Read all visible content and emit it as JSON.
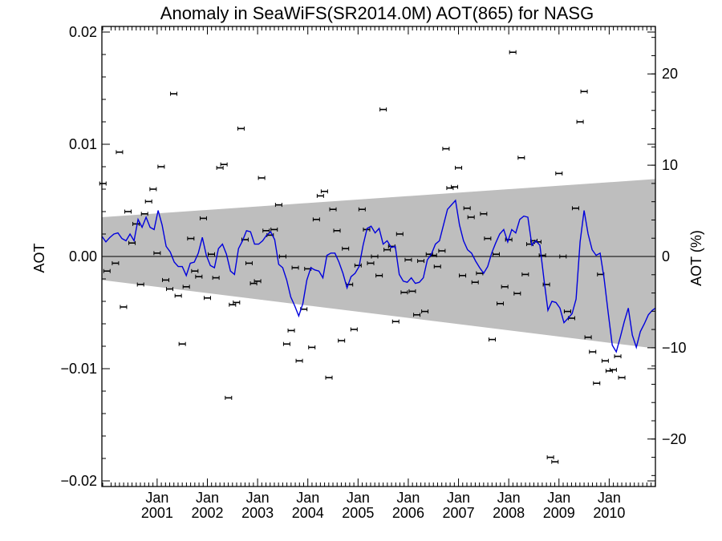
{
  "chart_data": {
    "type": "line",
    "title": "Anomaly in SeaWiFS(SR2014.0M) AOT(865) for NASG",
    "ylabel_left": "AOT",
    "ylabel_right": "AOT (%)",
    "xlabel": "",
    "ylim_left": [
      -0.0205,
      0.0205
    ],
    "ylim_right": [
      -25.2,
      25.2
    ],
    "x_range_years": [
      1999.9,
      2010.92
    ],
    "grid": false,
    "legend": "none",
    "left_ticks": [
      {
        "value": 0.02,
        "label": "0.02"
      },
      {
        "value": 0.01,
        "label": "0.01"
      },
      {
        "value": 0.0,
        "label": "0.00"
      },
      {
        "value": -0.01,
        "label": "−0.01"
      },
      {
        "value": -0.02,
        "label": "−0.02"
      }
    ],
    "right_ticks": [
      {
        "value": 20,
        "label": "20"
      },
      {
        "value": 10,
        "label": "10"
      },
      {
        "value": 0,
        "label": "0"
      },
      {
        "value": -10,
        "label": "−10"
      },
      {
        "value": -20,
        "label": "−20"
      }
    ],
    "x_ticks": [
      {
        "year": 2001.0,
        "month": "Jan",
        "yr": "2001"
      },
      {
        "year": 2002.0,
        "month": "Jan",
        "yr": "2002"
      },
      {
        "year": 2003.0,
        "month": "Jan",
        "yr": "2003"
      },
      {
        "year": 2004.0,
        "month": "Jan",
        "yr": "2004"
      },
      {
        "year": 2005.0,
        "month": "Jan",
        "yr": "2005"
      },
      {
        "year": 2006.0,
        "month": "Jan",
        "yr": "2006"
      },
      {
        "year": 2007.0,
        "month": "Jan",
        "yr": "2007"
      },
      {
        "year": 2008.0,
        "month": "Jan",
        "yr": "2008"
      },
      {
        "year": 2009.0,
        "month": "Jan",
        "yr": "2009"
      },
      {
        "year": 2010.0,
        "month": "Jan",
        "yr": "2010"
      }
    ],
    "band": {
      "upper": [
        [
          1999.9,
          0.0035
        ],
        [
          2010.92,
          0.0069
        ]
      ],
      "lower": [
        [
          1999.9,
          -0.0021
        ],
        [
          2010.92,
          -0.0082
        ]
      ],
      "color": "#bebebe"
    },
    "series": [
      {
        "kind": "monthly_points",
        "color": "#000000",
        "points": [
          [
            1999.92,
            0.0065
          ],
          [
            2000.0,
            -0.0013
          ],
          [
            2000.17,
            -0.0006
          ],
          [
            2000.25,
            0.0093
          ],
          [
            2000.33,
            -0.0045
          ],
          [
            2000.42,
            0.004
          ],
          [
            2000.5,
            0.0012
          ],
          [
            2000.58,
            0.0029
          ],
          [
            2000.67,
            -0.0025
          ],
          [
            2000.75,
            0.0038
          ],
          [
            2000.83,
            0.0049
          ],
          [
            2000.92,
            0.006
          ],
          [
            2001.0,
            0.0003
          ],
          [
            2001.08,
            0.008
          ],
          [
            2001.17,
            -0.0021
          ],
          [
            2001.25,
            -0.0029
          ],
          [
            2001.33,
            0.0145
          ],
          [
            2001.42,
            -0.0035
          ],
          [
            2001.5,
            -0.0078
          ],
          [
            2001.58,
            -0.0027
          ],
          [
            2001.67,
            0.0016
          ],
          [
            2001.75,
            -0.0013
          ],
          [
            2001.83,
            -0.0018
          ],
          [
            2001.92,
            0.0034
          ],
          [
            2002.0,
            -0.0037
          ],
          [
            2002.08,
            0.0002
          ],
          [
            2002.17,
            -0.0019
          ],
          [
            2002.25,
            0.0079
          ],
          [
            2002.33,
            0.0082
          ],
          [
            2002.42,
            -0.0126
          ],
          [
            2002.5,
            -0.0043
          ],
          [
            2002.58,
            -0.0041
          ],
          [
            2002.67,
            0.0114
          ],
          [
            2002.75,
            0.0015
          ],
          [
            2002.83,
            -0.0006
          ],
          [
            2002.92,
            -0.0024
          ],
          [
            2003.0,
            -0.0022
          ],
          [
            2003.08,
            0.007
          ],
          [
            2003.17,
            0.0023
          ],
          [
            2003.25,
            0.0019
          ],
          [
            2003.33,
            0.0024
          ],
          [
            2003.42,
            0.0046
          ],
          [
            2003.5,
            0.0
          ],
          [
            2003.58,
            -0.0078
          ],
          [
            2003.67,
            -0.0066
          ],
          [
            2003.75,
            -0.001
          ],
          [
            2003.83,
            -0.0093
          ],
          [
            2003.92,
            -0.0047
          ],
          [
            2004.0,
            -0.0011
          ],
          [
            2004.08,
            -0.0081
          ],
          [
            2004.17,
            0.0033
          ],
          [
            2004.25,
            0.0054
          ],
          [
            2004.33,
            0.0058
          ],
          [
            2004.42,
            -0.0108
          ],
          [
            2004.5,
            0.0042
          ],
          [
            2004.58,
            0.0023
          ],
          [
            2004.67,
            -0.0075
          ],
          [
            2004.75,
            0.0007
          ],
          [
            2004.83,
            -0.0025
          ],
          [
            2004.92,
            -0.0065
          ],
          [
            2005.0,
            -0.0008
          ],
          [
            2005.08,
            0.0042
          ],
          [
            2005.17,
            0.0024
          ],
          [
            2005.25,
            -0.0006
          ],
          [
            2005.33,
            0.0
          ],
          [
            2005.42,
            -0.0017
          ],
          [
            2005.5,
            0.0131
          ],
          [
            2005.58,
            0.0006
          ],
          [
            2005.67,
            0.0009
          ],
          [
            2005.75,
            -0.0058
          ],
          [
            2005.83,
            0.002
          ],
          [
            2005.92,
            -0.0032
          ],
          [
            2006.0,
            -0.0003
          ],
          [
            2006.08,
            -0.0031
          ],
          [
            2006.17,
            -0.0052
          ],
          [
            2006.25,
            -0.0004
          ],
          [
            2006.33,
            -0.0049
          ],
          [
            2006.42,
            0.0002
          ],
          [
            2006.5,
            0.0001
          ],
          [
            2006.58,
            -0.0009
          ],
          [
            2006.67,
            0.0005
          ],
          [
            2006.75,
            0.0096
          ],
          [
            2006.83,
            0.0061
          ],
          [
            2006.92,
            0.0062
          ],
          [
            2007.0,
            0.0079
          ],
          [
            2007.08,
            -0.0017
          ],
          [
            2007.17,
            0.0043
          ],
          [
            2007.25,
            0.0035
          ],
          [
            2007.33,
            -0.0023
          ],
          [
            2007.42,
            -0.0015
          ],
          [
            2007.5,
            0.0038
          ],
          [
            2007.58,
            0.0016
          ],
          [
            2007.67,
            -0.0074
          ],
          [
            2007.75,
            0.0002
          ],
          [
            2007.83,
            -0.0042
          ],
          [
            2007.92,
            -0.0027
          ],
          [
            2008.0,
            0.0015
          ],
          [
            2008.08,
            0.0182
          ],
          [
            2008.17,
            -0.0033
          ],
          [
            2008.25,
            0.0088
          ],
          [
            2008.33,
            -0.0016
          ],
          [
            2008.42,
            0.0011
          ],
          [
            2008.5,
            0.0014
          ],
          [
            2008.58,
            0.0013
          ],
          [
            2008.67,
            0.0001
          ],
          [
            2008.75,
            -0.0025
          ],
          [
            2008.83,
            -0.0179
          ],
          [
            2008.92,
            -0.0183
          ],
          [
            2009.0,
            0.0074
          ],
          [
            2009.08,
            0.0
          ],
          [
            2009.17,
            -0.0049
          ],
          [
            2009.25,
            -0.0055
          ],
          [
            2009.33,
            0.0043
          ],
          [
            2009.42,
            0.012
          ],
          [
            2009.5,
            0.0147
          ],
          [
            2009.58,
            -0.0072
          ],
          [
            2009.67,
            -0.0085
          ],
          [
            2009.75,
            -0.0113
          ],
          [
            2009.83,
            -0.0016
          ],
          [
            2009.92,
            -0.0093
          ],
          [
            2010.0,
            -0.0102
          ],
          [
            2010.08,
            -0.0101
          ],
          [
            2010.17,
            -0.0089
          ],
          [
            2010.25,
            -0.0108
          ]
        ]
      },
      {
        "kind": "smoothed_line",
        "color": "#0000dd",
        "points": [
          [
            1999.9,
            0.0018
          ],
          [
            1999.98,
            0.0013
          ],
          [
            2000.06,
            0.0017
          ],
          [
            2000.14,
            0.002
          ],
          [
            2000.22,
            0.0021
          ],
          [
            2000.3,
            0.0016
          ],
          [
            2000.38,
            0.0014
          ],
          [
            2000.46,
            0.002
          ],
          [
            2000.54,
            0.0014
          ],
          [
            2000.62,
            0.0033
          ],
          [
            2000.7,
            0.0026
          ],
          [
            2000.78,
            0.0035
          ],
          [
            2000.86,
            0.0026
          ],
          [
            2000.94,
            0.0024
          ],
          [
            2001.02,
            0.0041
          ],
          [
            2001.1,
            0.0028
          ],
          [
            2001.18,
            0.0009
          ],
          [
            2001.26,
            0.0004
          ],
          [
            2001.34,
            -0.0005
          ],
          [
            2001.42,
            -0.0009
          ],
          [
            2001.5,
            -0.0009
          ],
          [
            2001.58,
            -0.0017
          ],
          [
            2001.66,
            -0.0006
          ],
          [
            2001.74,
            -0.0005
          ],
          [
            2001.82,
            0.0003
          ],
          [
            2001.9,
            0.0017
          ],
          [
            2001.98,
            0.0001
          ],
          [
            2002.06,
            -0.0008
          ],
          [
            2002.14,
            -0.001
          ],
          [
            2002.22,
            0.0007
          ],
          [
            2002.3,
            0.0011
          ],
          [
            2002.38,
            0.0002
          ],
          [
            2002.46,
            -0.0013
          ],
          [
            2002.54,
            -0.0016
          ],
          [
            2002.62,
            0.0007
          ],
          [
            2002.7,
            0.0014
          ],
          [
            2002.78,
            0.0023
          ],
          [
            2002.86,
            0.0022
          ],
          [
            2002.94,
            0.0011
          ],
          [
            2003.02,
            0.0011
          ],
          [
            2003.1,
            0.0014
          ],
          [
            2003.18,
            0.0019
          ],
          [
            2003.26,
            0.0022
          ],
          [
            2003.34,
            0.0015
          ],
          [
            2003.42,
            -0.0007
          ],
          [
            2003.5,
            -0.001
          ],
          [
            2003.58,
            -0.0021
          ],
          [
            2003.66,
            -0.0036
          ],
          [
            2003.74,
            -0.0044
          ],
          [
            2003.82,
            -0.0053
          ],
          [
            2003.9,
            -0.0042
          ],
          [
            2003.98,
            -0.0021
          ],
          [
            2004.06,
            -0.001
          ],
          [
            2004.14,
            -0.0012
          ],
          [
            2004.22,
            -0.0013
          ],
          [
            2004.3,
            -0.0019
          ],
          [
            2004.38,
            0.0001
          ],
          [
            2004.46,
            0.0003
          ],
          [
            2004.54,
            0.0003
          ],
          [
            2004.62,
            -0.0005
          ],
          [
            2004.7,
            -0.0015
          ],
          [
            2004.78,
            -0.0028
          ],
          [
            2004.86,
            -0.0018
          ],
          [
            2004.94,
            -0.0015
          ],
          [
            2005.02,
            -0.0009
          ],
          [
            2005.1,
            0.001
          ],
          [
            2005.18,
            0.0025
          ],
          [
            2005.26,
            0.0027
          ],
          [
            2005.34,
            0.0021
          ],
          [
            2005.42,
            0.0025
          ],
          [
            2005.5,
            0.0011
          ],
          [
            2005.58,
            0.0014
          ],
          [
            2005.66,
            0.0008
          ],
          [
            2005.74,
            0.0009
          ],
          [
            2005.82,
            -0.0016
          ],
          [
            2005.9,
            -0.0022
          ],
          [
            2005.98,
            -0.0023
          ],
          [
            2006.06,
            -0.0019
          ],
          [
            2006.14,
            -0.0024
          ],
          [
            2006.22,
            -0.0023
          ],
          [
            2006.3,
            -0.0019
          ],
          [
            2006.38,
            -0.0003
          ],
          [
            2006.46,
            0.0002
          ],
          [
            2006.54,
            0.0011
          ],
          [
            2006.62,
            0.0014
          ],
          [
            2006.7,
            0.0028
          ],
          [
            2006.78,
            0.0042
          ],
          [
            2006.86,
            0.0046
          ],
          [
            2006.94,
            0.005
          ],
          [
            2007.02,
            0.0028
          ],
          [
            2007.1,
            0.0014
          ],
          [
            2007.18,
            0.0006
          ],
          [
            2007.26,
            0.0003
          ],
          [
            2007.34,
            -0.0004
          ],
          [
            2007.42,
            -0.001
          ],
          [
            2007.5,
            -0.0015
          ],
          [
            2007.58,
            -0.0009
          ],
          [
            2007.66,
            0.0003
          ],
          [
            2007.74,
            0.0012
          ],
          [
            2007.82,
            0.002
          ],
          [
            2007.9,
            0.0024
          ],
          [
            2007.98,
            0.0013
          ],
          [
            2008.06,
            0.0024
          ],
          [
            2008.14,
            0.0021
          ],
          [
            2008.22,
            0.0033
          ],
          [
            2008.3,
            0.0036
          ],
          [
            2008.38,
            0.0035
          ],
          [
            2008.46,
            0.001
          ],
          [
            2008.54,
            0.0014
          ],
          [
            2008.62,
            0.001
          ],
          [
            2008.7,
            -0.002
          ],
          [
            2008.78,
            -0.0048
          ],
          [
            2008.86,
            -0.004
          ],
          [
            2008.94,
            -0.0041
          ],
          [
            2009.02,
            -0.0046
          ],
          [
            2009.1,
            -0.0059
          ],
          [
            2009.18,
            -0.0055
          ],
          [
            2009.26,
            -0.0051
          ],
          [
            2009.34,
            -0.0038
          ],
          [
            2009.42,
            0.0013
          ],
          [
            2009.5,
            0.0041
          ],
          [
            2009.58,
            0.002
          ],
          [
            2009.66,
            0.0006
          ],
          [
            2009.74,
            0.0001
          ],
          [
            2009.82,
            0.0003
          ],
          [
            2009.9,
            -0.002
          ],
          [
            2009.98,
            -0.005
          ],
          [
            2010.06,
            -0.0079
          ],
          [
            2010.14,
            -0.0085
          ],
          [
            2010.22,
            -0.0072
          ],
          [
            2010.3,
            -0.0058
          ],
          [
            2010.38,
            -0.0046
          ],
          [
            2010.46,
            -0.007
          ],
          [
            2010.54,
            -0.0081
          ],
          [
            2010.62,
            -0.0067
          ],
          [
            2010.7,
            -0.006
          ],
          [
            2010.78,
            -0.0052
          ],
          [
            2010.86,
            -0.0048
          ],
          [
            2010.92,
            -0.0046
          ]
        ]
      }
    ]
  }
}
